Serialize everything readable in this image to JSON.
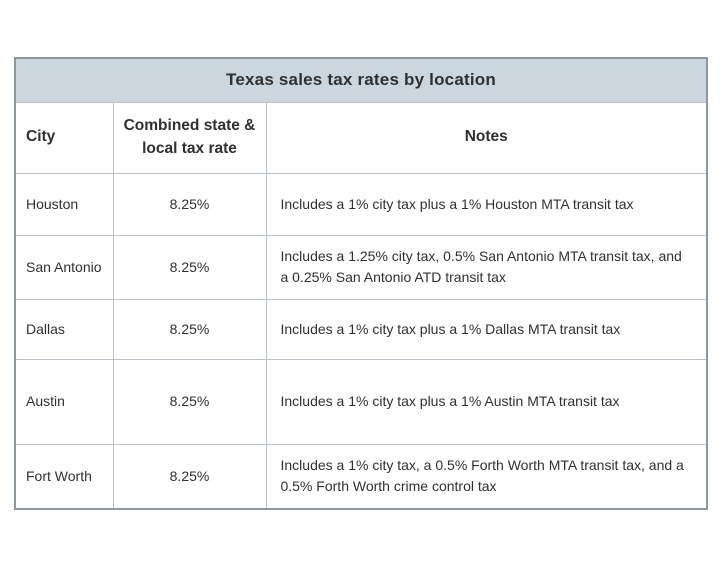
{
  "table": {
    "title": "Texas sales tax rates by location",
    "columns": [
      "City",
      "Combined state & local tax rate",
      "Notes"
    ],
    "rows": [
      {
        "city": "Houston",
        "rate": "8.25%",
        "notes": "Includes a 1% city tax plus a 1% Houston MTA transit tax"
      },
      {
        "city": "San Antonio",
        "rate": "8.25%",
        "notes": "Includes a 1.25% city tax, 0.5% San Antonio MTA transit tax, and a 0.25% San Antonio ATD transit tax"
      },
      {
        "city": "Dallas",
        "rate": "8.25%",
        "notes": "Includes a 1% city tax plus a 1% Dallas MTA transit tax"
      },
      {
        "city": "Austin",
        "rate": "8.25%",
        "notes": "Includes a 1% city tax plus a 1% Austin MTA transit tax"
      },
      {
        "city": "Fort Worth",
        "rate": "8.25%",
        "notes": "Includes a 1% city tax, a 0.5% Forth Worth MTA transit tax, and a 0.5% Forth Worth crime control tax"
      }
    ]
  },
  "chart_data": {
    "type": "table",
    "title": "Texas sales tax rates by location",
    "columns": [
      "City",
      "Combined state & local tax rate",
      "Notes"
    ],
    "rows": [
      [
        "Houston",
        "8.25%",
        "Includes a 1% city tax plus a 1% Houston MTA transit tax"
      ],
      [
        "San Antonio",
        "8.25%",
        "Includes a 1.25% city tax, 0.5% San Antonio MTA transit tax, and a 0.25% San Antonio ATD transit tax"
      ],
      [
        "Dallas",
        "8.25%",
        "Includes a 1% city tax plus a 1% Dallas MTA transit tax"
      ],
      [
        "Austin",
        "8.25%",
        "Includes a 1% city tax plus a 1% Austin MTA transit tax"
      ],
      [
        "Fort Worth",
        "8.25%",
        "Includes a 1% city tax, a 0.5% Forth Worth MTA transit tax, and a 0.5% Forth Worth crime control tax"
      ]
    ]
  },
  "colors": {
    "title_bg": "#ccd6de",
    "outer_border": "#8d979e",
    "inner_border": "#b9c2c9",
    "text": "#303030",
    "page_bg": "#ffffff"
  }
}
